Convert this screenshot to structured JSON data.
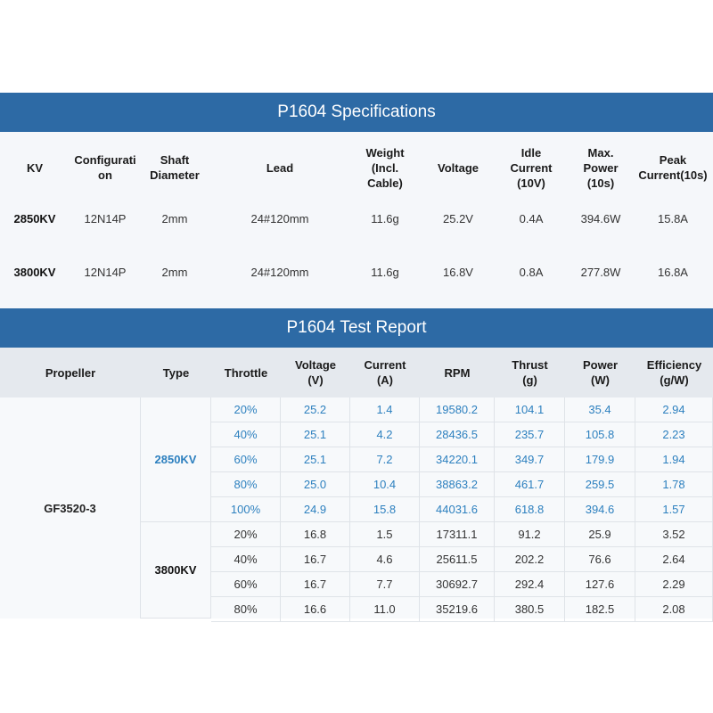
{
  "spec": {
    "title": "P1604 Specifications",
    "headers": [
      "KV",
      "Configurati\non",
      "Shaft\nDiameter",
      "Lead",
      "Weight\n(Incl.\nCable)",
      "Voltage",
      "Idle\nCurrent\n(10V)",
      "Max.\nPower\n(10s)",
      "Peak\nCurrent(10s)"
    ],
    "rows": [
      [
        "2850KV",
        "12N14P",
        "2mm",
        "24#120mm",
        "11.6g",
        "25.2V",
        "0.4A",
        "394.6W",
        "15.8A"
      ],
      [
        "3800KV",
        "12N14P",
        "2mm",
        "24#120mm",
        "11.6g",
        "16.8V",
        "0.8A",
        "277.8W",
        "16.8A"
      ]
    ]
  },
  "report": {
    "title": "P1604 Test Report",
    "headers": [
      "Propeller",
      "Type",
      "Throttle",
      "Voltage\n(V)",
      "Current\n(A)",
      "RPM",
      "Thrust\n(g)",
      "Power\n(W)",
      "Efficiency\n(g/W)"
    ],
    "propeller": "GF3520-3",
    "groups": [
      {
        "type": "2850KV",
        "rows": [
          [
            "20%",
            "25.2",
            "1.4",
            "19580.2",
            "104.1",
            "35.4",
            "2.94"
          ],
          [
            "40%",
            "25.1",
            "4.2",
            "28436.5",
            "235.7",
            "105.8",
            "2.23"
          ],
          [
            "60%",
            "25.1",
            "7.2",
            "34220.1",
            "349.7",
            "179.9",
            "1.94"
          ],
          [
            "80%",
            "25.0",
            "10.4",
            "38863.2",
            "461.7",
            "259.5",
            "1.78"
          ],
          [
            "100%",
            "24.9",
            "15.8",
            "44031.6",
            "618.8",
            "394.6",
            "1.57"
          ]
        ]
      },
      {
        "type": "3800KV",
        "rows": [
          [
            "20%",
            "16.8",
            "1.5",
            "17311.1",
            "91.2",
            "25.9",
            "3.52"
          ],
          [
            "40%",
            "16.7",
            "4.6",
            "25611.5",
            "202.2",
            "76.6",
            "2.64"
          ],
          [
            "60%",
            "16.7",
            "7.7",
            "30692.7",
            "292.4",
            "127.6",
            "2.29"
          ],
          [
            "80%",
            "16.6",
            "11.0",
            "35219.6",
            "380.5",
            "182.5",
            "2.08"
          ]
        ]
      }
    ]
  },
  "colors": {
    "banner": "#2d6aa5",
    "accent_blue": "#2d80bf"
  }
}
